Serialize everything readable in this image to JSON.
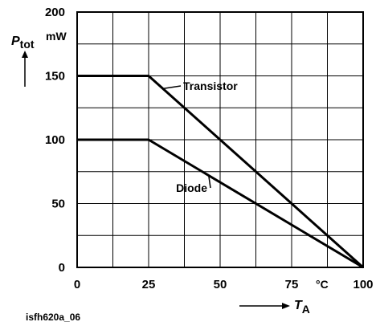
{
  "figure_code": "isfh620a_06",
  "chart_data": {
    "type": "line",
    "ylabel": "P",
    "ylabel_sub": "tot",
    "yunit": "mW",
    "xlabel": "T",
    "xlabel_sub": "A",
    "xunit": "°C",
    "xlim": [
      0,
      100
    ],
    "ylim": [
      0,
      200
    ],
    "x_ticks": [
      0,
      25,
      50,
      75,
      100
    ],
    "y_ticks": [
      0,
      50,
      100,
      150,
      200
    ],
    "grid": true,
    "series": [
      {
        "name": "Transistor",
        "x": [
          0,
          25,
          100
        ],
        "y": [
          150,
          150,
          0
        ]
      },
      {
        "name": "Diode",
        "x": [
          0,
          25,
          100
        ],
        "y": [
          100,
          100,
          0
        ]
      }
    ]
  }
}
